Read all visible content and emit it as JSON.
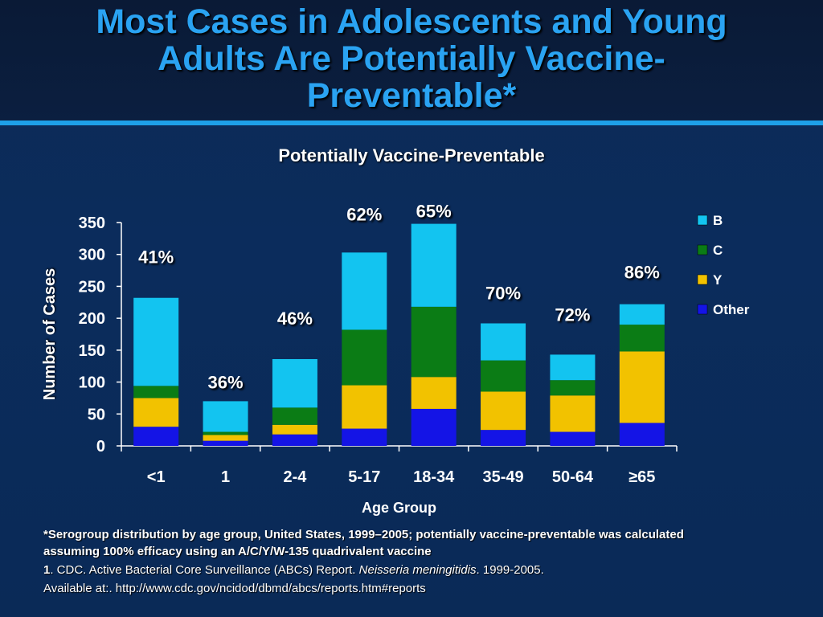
{
  "slide": {
    "title_lines": [
      "Most Cases in Adolescents and Young",
      "Adults Are Potentially Vaccine-",
      "Preventable*"
    ]
  },
  "colors": {
    "title": "#2aa3f2",
    "B": "#13c4f0",
    "C": "#0b7c15",
    "Y": "#f2c200",
    "Other": "#1414e6"
  },
  "chart_data": {
    "type": "bar",
    "stacked": true,
    "title": "Potentially Vaccine-Preventable",
    "xlabel": "Age Group",
    "ylabel": "Number of Cases",
    "ylim": [
      0,
      350
    ],
    "yticks": [
      0,
      50,
      100,
      150,
      200,
      250,
      300,
      350
    ],
    "categories": [
      "<1",
      "1",
      "2-4",
      "5-17",
      "18-34",
      "35-49",
      "50-64",
      "≥65"
    ],
    "series": [
      {
        "name": "Other",
        "values": [
          30,
          8,
          18,
          27,
          58,
          25,
          22,
          36
        ]
      },
      {
        "name": "Y",
        "values": [
          45,
          9,
          15,
          68,
          50,
          60,
          57,
          112
        ]
      },
      {
        "name": "C",
        "values": [
          19,
          5,
          27,
          87,
          110,
          49,
          24,
          42
        ]
      },
      {
        "name": "B",
        "values": [
          138,
          48,
          76,
          121,
          130,
          58,
          40,
          32
        ]
      }
    ],
    "bar_labels": [
      "41%",
      "36%",
      "46%",
      "62%",
      "65%",
      "70%",
      "72%",
      "86%"
    ],
    "legend": {
      "placement": "right",
      "order": [
        "B",
        "C",
        "Y",
        "Other"
      ]
    },
    "grid": false
  },
  "footnote": {
    "line1": "*Serogroup distribution by age group, United States, 1999–2005; potentially vaccine-preventable was calculated",
    "line2": "assuming 100% efficacy using an A/C/Y/W-135 quadrivalent vaccine",
    "ref_number": "1",
    "ref_text_a": ". CDC. Active Bacterial Core Surveillance (ABCs) Report. ",
    "ref_italic": "Neisseria meningitidis",
    "ref_text_b": ". 1999-2005.",
    "line4": "Available at:. http://www.cdc.gov/ncidod/dbmd/abcs/reports.htm#reports"
  }
}
